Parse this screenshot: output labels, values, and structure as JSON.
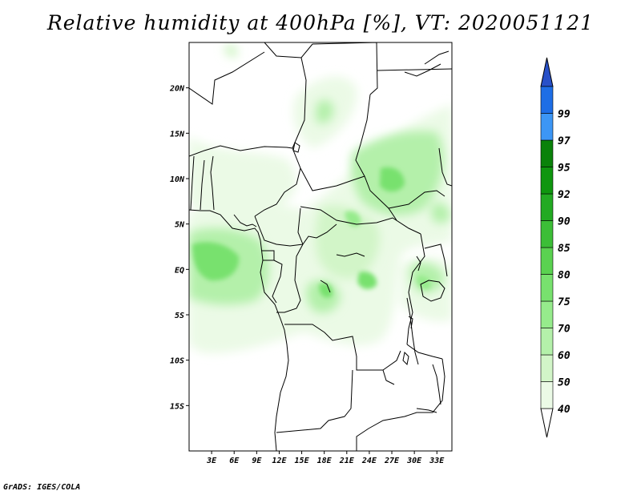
{
  "title": "Relative humidity at 400hPa [%], VT: 2020051121",
  "credit": "GrADS: IGES/COLA",
  "map": {
    "lon_range": [
      0,
      35
    ],
    "lat_range": [
      -20,
      25
    ],
    "lat_ticks": [
      {
        "v": 20,
        "label": "20N"
      },
      {
        "v": 15,
        "label": "15N"
      },
      {
        "v": 10,
        "label": "10N"
      },
      {
        "v": 5,
        "label": "5N"
      },
      {
        "v": 0,
        "label": "EQ"
      },
      {
        "v": -5,
        "label": "5S"
      },
      {
        "v": -10,
        "label": "10S"
      },
      {
        "v": -15,
        "label": "15S"
      }
    ],
    "lon_ticks": [
      {
        "v": 3,
        "label": "3E"
      },
      {
        "v": 6,
        "label": "6E"
      },
      {
        "v": 9,
        "label": "9E"
      },
      {
        "v": 12,
        "label": "12E"
      },
      {
        "v": 15,
        "label": "15E"
      },
      {
        "v": 18,
        "label": "18E"
      },
      {
        "v": 21,
        "label": "21E"
      },
      {
        "v": 24,
        "label": "24E"
      },
      {
        "v": 27,
        "label": "27E"
      },
      {
        "v": 30,
        "label": "30E"
      },
      {
        "v": 33,
        "label": "33E"
      }
    ]
  },
  "colorbar": {
    "levels": [
      {
        "label": "40",
        "color": "#ebfae6"
      },
      {
        "label": "50",
        "color": "#d2f5c8"
      },
      {
        "label": "60",
        "color": "#b4f0aa"
      },
      {
        "label": "70",
        "color": "#96eb8c"
      },
      {
        "label": "75",
        "color": "#78e16e"
      },
      {
        "label": "80",
        "color": "#5ad250"
      },
      {
        "label": "85",
        "color": "#3cbe37"
      },
      {
        "label": "90",
        "color": "#23aa23"
      },
      {
        "label": "92",
        "color": "#0f960f"
      },
      {
        "label": "95",
        "color": "#0a820a"
      },
      {
        "label": "97",
        "color": "#3c96f5"
      },
      {
        "label": "99",
        "color": "#1e6ee6"
      }
    ],
    "top_color": "#2850c8",
    "bottom_color": "#ffffff"
  }
}
